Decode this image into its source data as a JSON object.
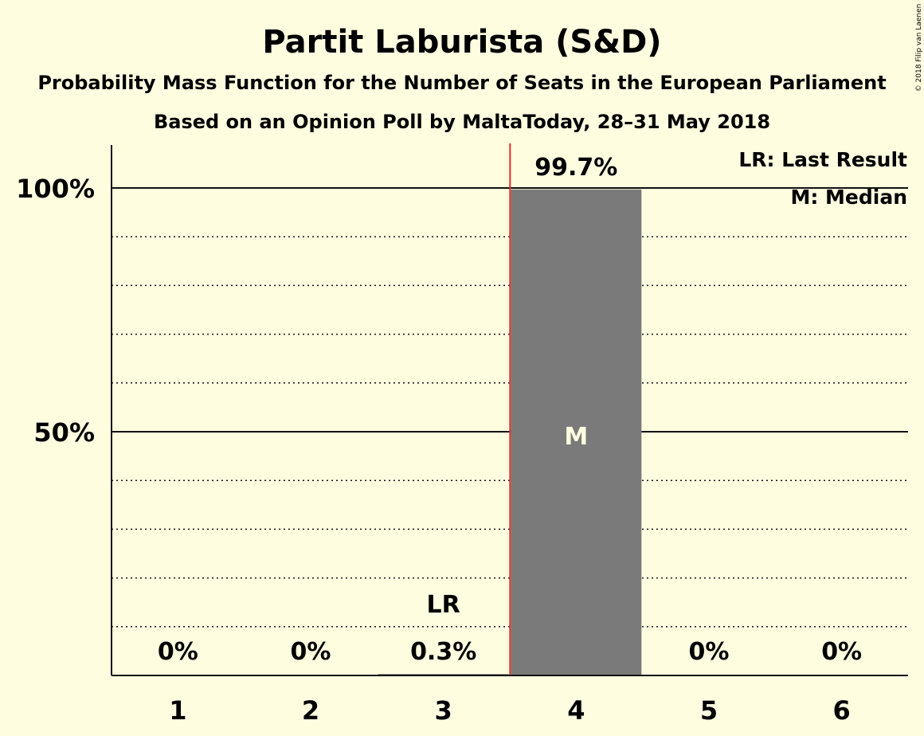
{
  "chart_data": {
    "type": "bar",
    "title": "Partit Laburista (S&D)",
    "subtitle": "Probability Mass Function for the Number of Seats in the European Parliament",
    "subtitle2": "Based on an Opinion Poll by MaltaToday, 28–31 May 2018",
    "categories": [
      "1",
      "2",
      "3",
      "4",
      "5",
      "6"
    ],
    "values": [
      0,
      0,
      0.3,
      99.7,
      0,
      0
    ],
    "value_labels": [
      "0%",
      "0%",
      "0.3%",
      "99.7%",
      "0%",
      "0%"
    ],
    "ylim": [
      0,
      100
    ],
    "yticks": [
      {
        "value": 50,
        "label": "50%"
      },
      {
        "value": 100,
        "label": "100%"
      }
    ],
    "minor_grid": [
      10,
      20,
      30,
      40,
      60,
      70,
      80,
      90
    ],
    "last_result": {
      "category": "3",
      "label": "LR"
    },
    "median": {
      "category": "4",
      "label": "M"
    },
    "legend": {
      "position": "top-right",
      "entries": [
        "LR: Last Result",
        "M: Median"
      ]
    },
    "copyright": "© 2018 Filip van Laenen",
    "colors": {
      "background": "#fffde0",
      "bar": "#7a7a7a",
      "median_marker_line": "#e0302b",
      "text": "#111111",
      "median_text": "#fffde0"
    }
  }
}
